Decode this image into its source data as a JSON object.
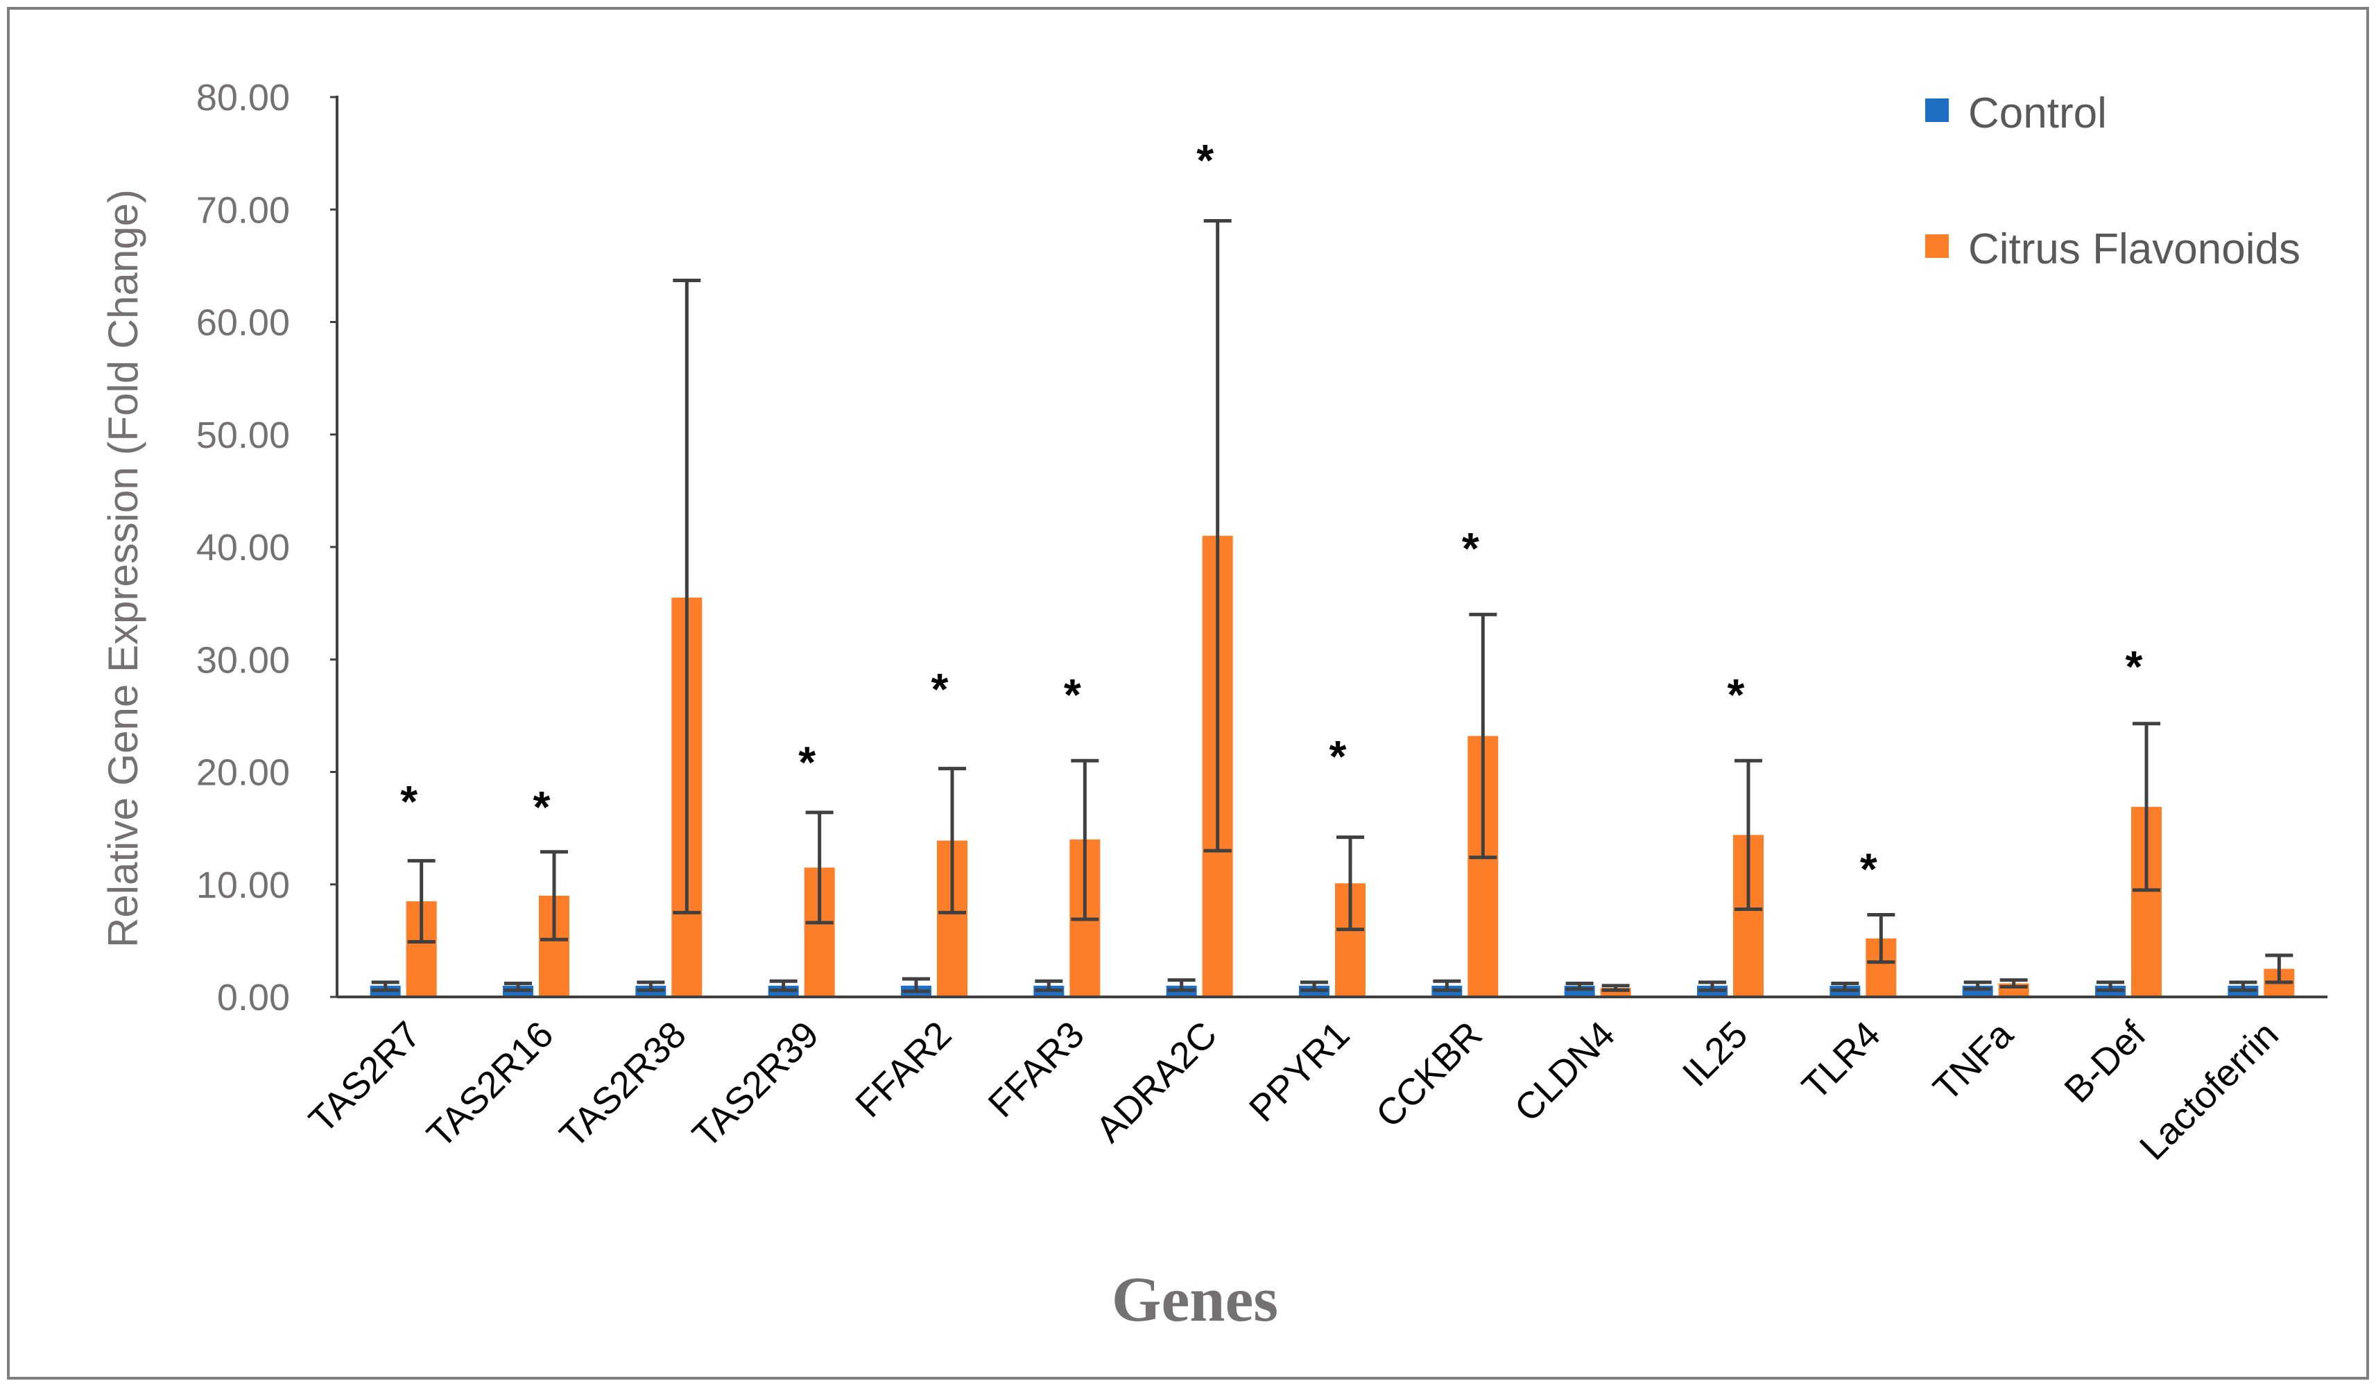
{
  "chart_data": {
    "type": "bar",
    "title": "",
    "xlabel": "Genes",
    "ylabel": "Relative Gene Expression (Fold Change)",
    "ylim": [
      0,
      80
    ],
    "yticks": [
      "0.00",
      "10.00",
      "20.00",
      "30.00",
      "40.00",
      "50.00",
      "60.00",
      "70.00",
      "80.00"
    ],
    "grid": false,
    "legend_position": "top-right",
    "categories": [
      "TAS2R7",
      "TAS2R16",
      "TAS2R38",
      "TAS2R39",
      "FFAR2",
      "FFAR3",
      "ADRA2C",
      "PPYR1",
      "CCKBR",
      "CLDN4",
      "IL25",
      "TLR4",
      "TNFa",
      "B-Def",
      "Lactoferrin"
    ],
    "series": [
      {
        "name": "Control",
        "color": "#1f6fc5",
        "values": [
          1.0,
          1.0,
          1.0,
          1.0,
          1.0,
          1.0,
          1.0,
          1.0,
          1.0,
          1.0,
          1.0,
          1.0,
          1.0,
          1.0,
          1.0
        ],
        "error_low": [
          0.6,
          0.6,
          0.6,
          0.6,
          0.5,
          0.6,
          0.6,
          0.6,
          0.6,
          0.7,
          0.6,
          0.6,
          0.7,
          0.6,
          0.6
        ],
        "error_high": [
          1.3,
          1.2,
          1.3,
          1.4,
          1.6,
          1.4,
          1.5,
          1.3,
          1.4,
          1.2,
          1.3,
          1.2,
          1.3,
          1.3,
          1.3
        ]
      },
      {
        "name": "Citrus Flavonoids",
        "color": "#fd7e28",
        "values": [
          8.5,
          9.0,
          35.5,
          11.5,
          13.9,
          14.0,
          41.0,
          10.1,
          23.2,
          0.8,
          14.4,
          5.2,
          1.2,
          16.9,
          2.5
        ],
        "error_low": [
          4.9,
          5.1,
          7.5,
          6.6,
          7.5,
          6.9,
          13.0,
          6.0,
          12.4,
          0.6,
          7.8,
          3.1,
          0.9,
          9.5,
          1.3
        ],
        "error_high": [
          12.1,
          12.9,
          63.7,
          16.4,
          20.3,
          21.0,
          69.0,
          14.2,
          34.0,
          1.0,
          21.0,
          7.3,
          1.5,
          24.3,
          3.7
        ]
      }
    ],
    "significance_marker": "*",
    "significant": [
      true,
      true,
      false,
      true,
      true,
      true,
      true,
      true,
      true,
      false,
      true,
      true,
      false,
      true,
      false
    ],
    "significance_values": [
      17.5,
      17.0,
      null,
      21.0,
      27.5,
      27.0,
      74.5,
      21.5,
      40.0,
      null,
      27.0,
      11.5,
      null,
      29.5,
      null
    ]
  }
}
